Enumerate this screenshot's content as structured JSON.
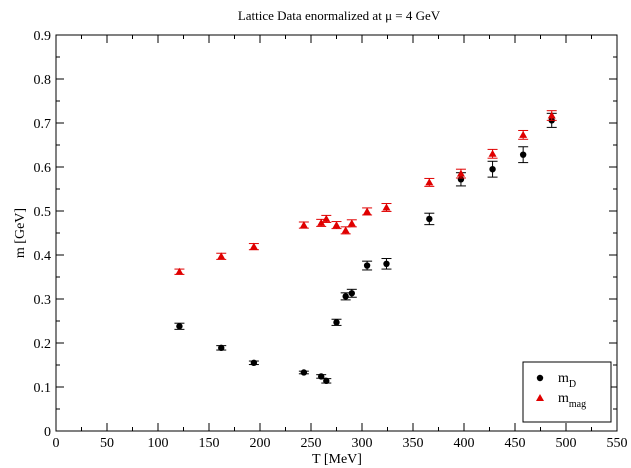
{
  "chart_data": {
    "type": "scatter",
    "title": "Lattice Data    enormalized at μ = 4 GeV",
    "xlabel": "T  [MeV]",
    "ylabel": "m   [GeV]",
    "xlim": [
      0,
      550
    ],
    "ylim": [
      0,
      0.9
    ],
    "xticks": [
      "0",
      "50",
      "100",
      "150",
      "200",
      "250",
      "300",
      "350",
      "400",
      "450",
      "500",
      "550"
    ],
    "yticks": [
      "0",
      "0.1",
      "0.2",
      "0.3",
      "0.4",
      "0.5",
      "0.6",
      "0.7",
      "0.8",
      "0.9"
    ],
    "grid": false,
    "legend_position": "bottom-right",
    "series": [
      {
        "name": "m_D",
        "legend_main": "m",
        "legend_sub": "D",
        "marker": "circle",
        "color": "#000000",
        "points": [
          {
            "x": 121,
            "y": 0.238,
            "err": 0.007
          },
          {
            "x": 162,
            "y": 0.189,
            "err": 0.005
          },
          {
            "x": 194,
            "y": 0.155,
            "err": 0.004
          },
          {
            "x": 243,
            "y": 0.133,
            "err": 0.003
          },
          {
            "x": 260,
            "y": 0.124,
            "err": 0.004
          },
          {
            "x": 265,
            "y": 0.114,
            "err": 0.005
          },
          {
            "x": 275,
            "y": 0.247,
            "err": 0.007
          },
          {
            "x": 284,
            "y": 0.306,
            "err": 0.008
          },
          {
            "x": 290,
            "y": 0.313,
            "err": 0.009
          },
          {
            "x": 305,
            "y": 0.376,
            "err": 0.01
          },
          {
            "x": 324,
            "y": 0.38,
            "err": 0.012
          },
          {
            "x": 366,
            "y": 0.482,
            "err": 0.013
          },
          {
            "x": 397,
            "y": 0.572,
            "err": 0.015
          },
          {
            "x": 428,
            "y": 0.595,
            "err": 0.018
          },
          {
            "x": 458,
            "y": 0.628,
            "err": 0.018
          },
          {
            "x": 486,
            "y": 0.706,
            "err": 0.016
          }
        ]
      },
      {
        "name": "m_mag",
        "legend_main": "m",
        "legend_sub": "mag",
        "marker": "triangle",
        "color": "#e00000",
        "points": [
          {
            "x": 121,
            "y": 0.362,
            "err": 0.006
          },
          {
            "x": 162,
            "y": 0.397,
            "err": 0.007
          },
          {
            "x": 194,
            "y": 0.419,
            "err": 0.007
          },
          {
            "x": 243,
            "y": 0.468,
            "err": 0.007
          },
          {
            "x": 260,
            "y": 0.473,
            "err": 0.008
          },
          {
            "x": 265,
            "y": 0.482,
            "err": 0.008
          },
          {
            "x": 275,
            "y": 0.468,
            "err": 0.008
          },
          {
            "x": 284,
            "y": 0.456,
            "err": 0.008
          },
          {
            "x": 290,
            "y": 0.472,
            "err": 0.008
          },
          {
            "x": 305,
            "y": 0.499,
            "err": 0.008
          },
          {
            "x": 324,
            "y": 0.508,
            "err": 0.009
          },
          {
            "x": 366,
            "y": 0.565,
            "err": 0.009
          },
          {
            "x": 397,
            "y": 0.585,
            "err": 0.01
          },
          {
            "x": 428,
            "y": 0.63,
            "err": 0.01
          },
          {
            "x": 458,
            "y": 0.673,
            "err": 0.01
          },
          {
            "x": 486,
            "y": 0.717,
            "err": 0.011
          }
        ]
      }
    ]
  }
}
